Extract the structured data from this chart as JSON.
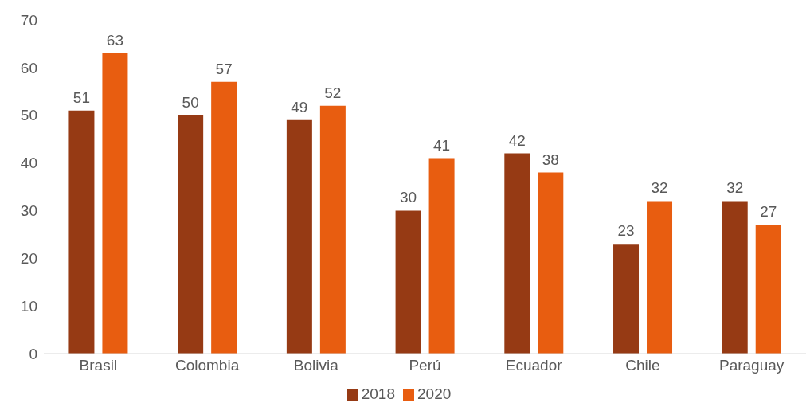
{
  "chart_data": {
    "type": "bar",
    "categories": [
      "Brasil",
      "Colombia",
      "Bolivia",
      "Perú",
      "Ecuador",
      "Chile",
      "Paraguay"
    ],
    "series": [
      {
        "name": "2018",
        "color": "#963a14",
        "values": [
          51,
          50,
          49,
          30,
          42,
          23,
          32
        ]
      },
      {
        "name": "2020",
        "color": "#e85d10",
        "values": [
          63,
          57,
          52,
          41,
          38,
          32,
          27
        ]
      }
    ],
    "ylim": [
      0,
      70
    ],
    "yticks": [
      0,
      10,
      20,
      30,
      40,
      50,
      60,
      70
    ],
    "grid": false,
    "legend": "bottom",
    "data_labels": true
  }
}
